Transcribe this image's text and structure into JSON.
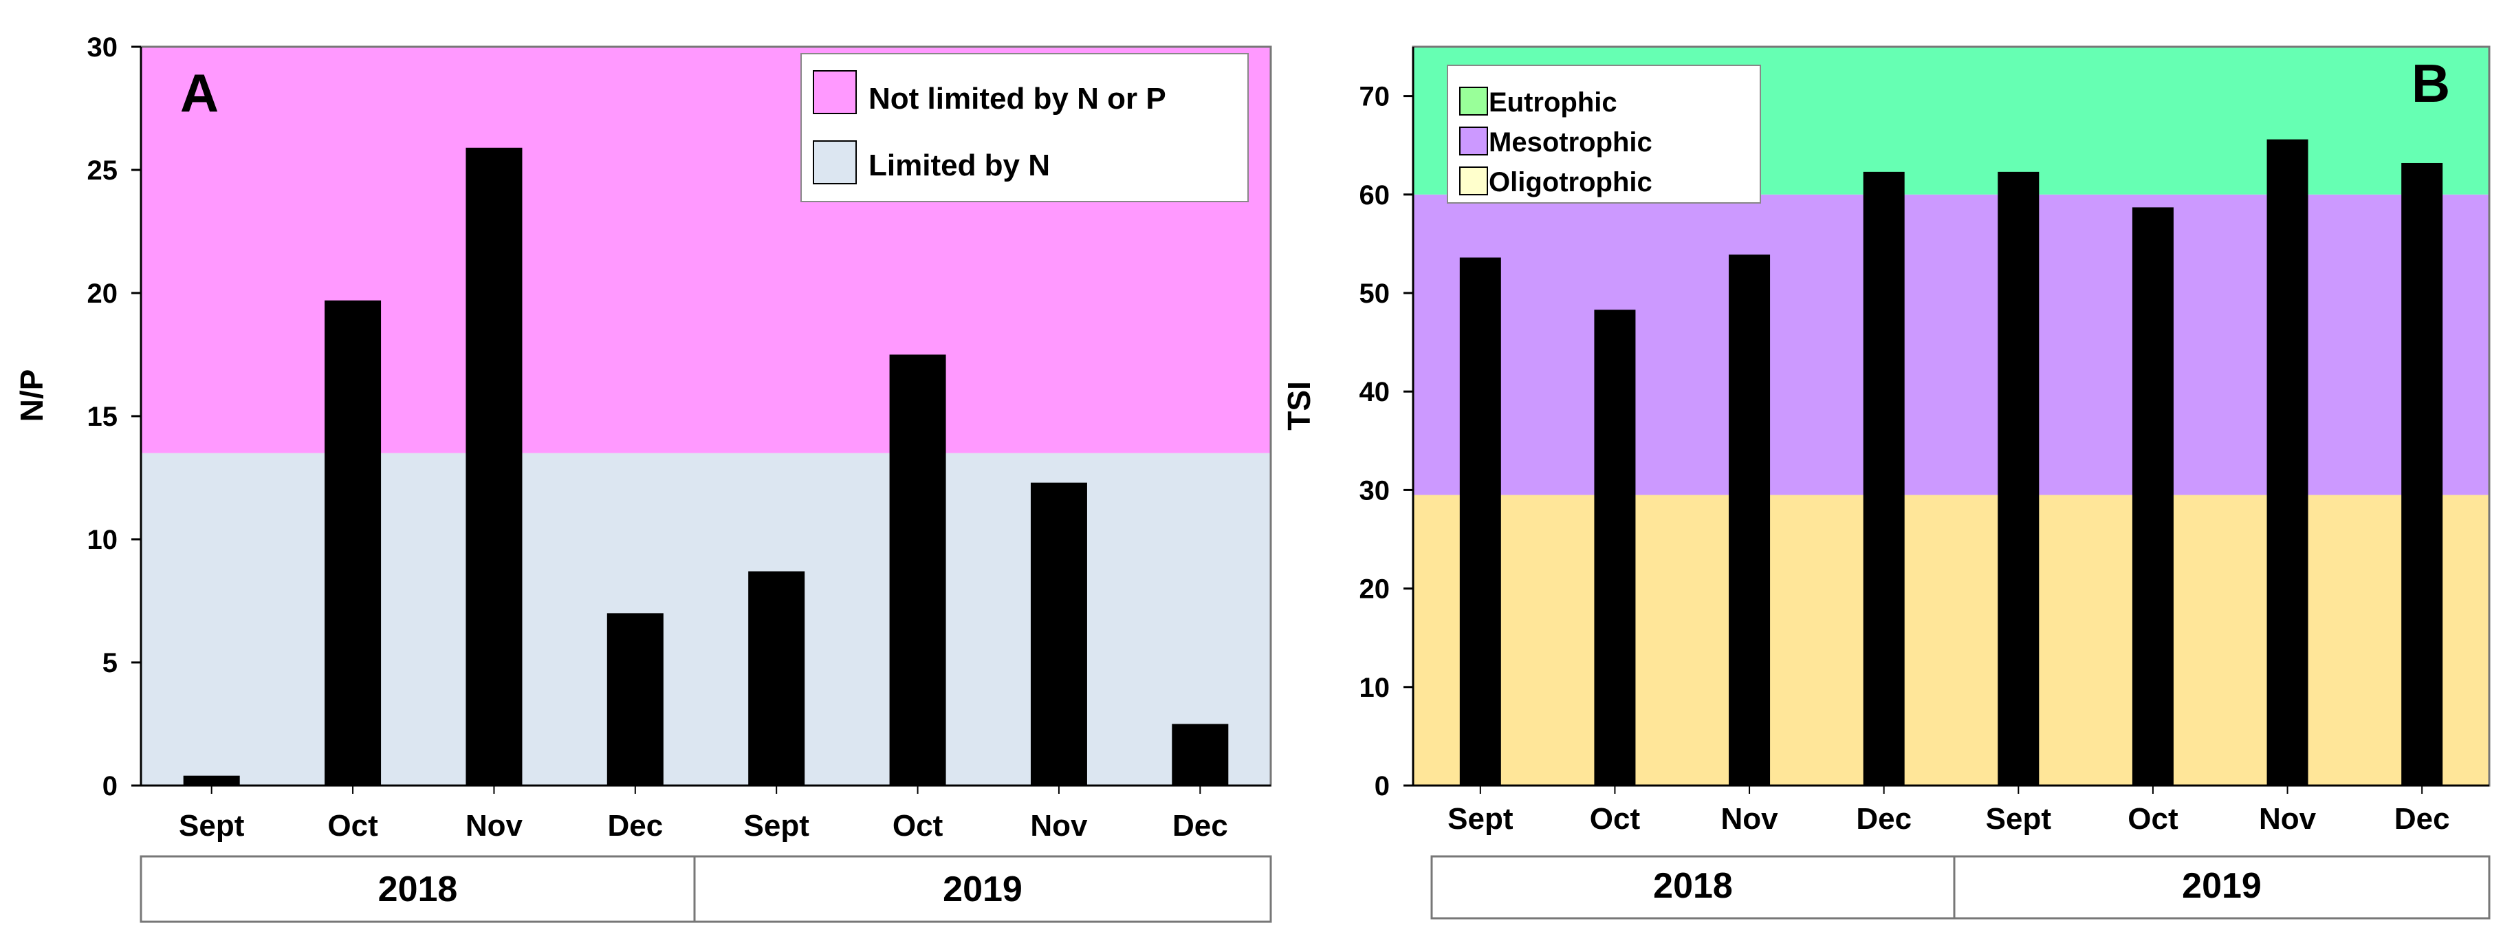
{
  "chart_data": [
    {
      "panel": "A",
      "type": "bar",
      "ylabel": "N/P",
      "ylim": [
        0,
        30
      ],
      "yticks": [
        0,
        5,
        10,
        15,
        20,
        25,
        30
      ],
      "categories": [
        "Sept",
        "Oct",
        "Nov",
        "Dec",
        "Sept",
        "Oct",
        "Nov",
        "Dec"
      ],
      "years": [
        {
          "label": "2018",
          "span": [
            0,
            3
          ]
        },
        {
          "label": "2019",
          "span": [
            4,
            7
          ]
        }
      ],
      "values": [
        0.4,
        19.7,
        25.9,
        7.0,
        8.7,
        17.5,
        12.3,
        2.5
      ],
      "bar_color": "#000000",
      "zones": [
        {
          "name": "Limited by N",
          "from": 0,
          "to": 13.5,
          "color": "#dce6f1"
        },
        {
          "name": "Not limited by N or P",
          "from": 13.5,
          "to": 30,
          "color": "#ff99ff"
        }
      ],
      "legend": [
        "Not limited by N or P",
        "Limited by N"
      ],
      "legend_position": "top-right"
    },
    {
      "panel": "B",
      "type": "bar",
      "ylabel": "TSI",
      "ylim": [
        0,
        75
      ],
      "yticks": [
        0,
        10,
        20,
        30,
        40,
        50,
        60,
        70
      ],
      "categories": [
        "Sept",
        "Oct",
        "Nov",
        "Dec",
        "Sept",
        "Oct",
        "Nov",
        "Dec"
      ],
      "years": [
        {
          "label": "2018",
          "span": [
            0,
            3
          ]
        },
        {
          "label": "2019",
          "span": [
            4,
            7
          ]
        }
      ],
      "values": [
        53.6,
        48.3,
        53.9,
        62.3,
        62.3,
        58.7,
        65.6,
        63.2
      ],
      "bar_color": "#000000",
      "zones": [
        {
          "name": "Oligotrophic",
          "from": 0,
          "to": 29.5,
          "color": "#ffe699"
        },
        {
          "name": "Mesotrophic",
          "from": 29.5,
          "to": 60,
          "color": "#cc99ff"
        },
        {
          "name": "Eutrophic",
          "from": 60,
          "to": 75,
          "color": "#66ffb3"
        }
      ],
      "legend": [
        "Eutrophic",
        "Mesotrophic",
        "Oligotrophic"
      ],
      "legend_colors": [
        "#99ff99",
        "#cc99ff",
        "#ffffcc"
      ],
      "legend_position": "top-left"
    }
  ]
}
